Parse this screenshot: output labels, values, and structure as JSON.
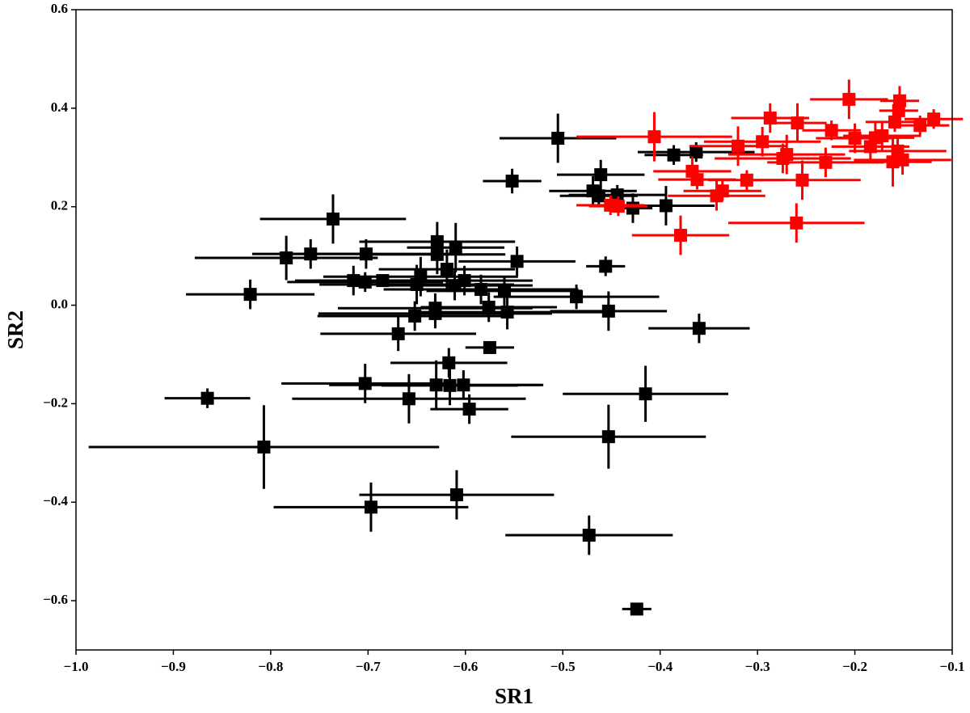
{
  "chart_data": {
    "type": "scatter",
    "xlabel": "SR1",
    "ylabel": "SR2",
    "xlim": [
      -1.0,
      -0.1
    ],
    "ylim": [
      -0.7,
      0.6
    ],
    "xticks": [
      {
        "value": -1.0,
        "label": "−1.0"
      },
      {
        "value": -0.9,
        "label": "−0.9"
      },
      {
        "value": -0.8,
        "label": "−0.8"
      },
      {
        "value": -0.7,
        "label": "−0.7"
      },
      {
        "value": -0.6,
        "label": "−0.6"
      },
      {
        "value": -0.5,
        "label": "−0.5"
      },
      {
        "value": -0.4,
        "label": "−0.4"
      },
      {
        "value": -0.3,
        "label": "−0.3"
      },
      {
        "value": -0.2,
        "label": "−0.2"
      },
      {
        "value": -0.1,
        "label": "−0.1"
      }
    ],
    "yticks": [
      {
        "value": -0.6,
        "label": "−0.6"
      },
      {
        "value": -0.4,
        "label": "−0.4"
      },
      {
        "value": -0.2,
        "label": "−0.2"
      },
      {
        "value": 0.0,
        "label": "0.0"
      },
      0.2,
      0.4,
      0.6
    ],
    "series": [
      {
        "color": "#000000",
        "x": [
          -0.865,
          -0.807,
          -0.697,
          -0.609,
          -0.473,
          -0.424,
          -0.453,
          -0.415,
          -0.36,
          -0.821,
          -0.784,
          -0.759,
          -0.736,
          -0.702,
          -0.715,
          -0.703,
          -0.685,
          -0.669,
          -0.703,
          -0.658,
          -0.652,
          -0.65,
          -0.646,
          -0.629,
          -0.629,
          -0.631,
          -0.631,
          -0.617,
          -0.63,
          -0.616,
          -0.602,
          -0.596,
          -0.61,
          -0.619,
          -0.611,
          -0.601,
          -0.584,
          -0.575,
          -0.576,
          -0.557,
          -0.56,
          -0.547,
          -0.552,
          -0.505,
          -0.486,
          -0.453,
          -0.456,
          -0.461,
          -0.469,
          -0.463,
          -0.444,
          -0.428,
          -0.394,
          -0.386,
          -0.363
        ],
        "values": [
          -0.189,
          -0.288,
          -0.41,
          -0.385,
          -0.467,
          -0.617,
          -0.267,
          -0.18,
          -0.047,
          0.022,
          0.096,
          0.104,
          0.175,
          0.104,
          0.05,
          0.047,
          0.05,
          -0.058,
          -0.159,
          -0.19,
          -0.022,
          0.042,
          0.058,
          0.129,
          0.103,
          -0.006,
          -0.017,
          -0.117,
          -0.162,
          -0.163,
          -0.162,
          -0.211,
          0.117,
          0.073,
          0.04,
          0.05,
          0.032,
          -0.086,
          -0.004,
          -0.014,
          0.029,
          0.089,
          0.252,
          0.339,
          0.017,
          -0.012,
          0.079,
          0.265,
          0.232,
          0.222,
          0.224,
          0.197,
          0.202,
          0.305,
          0.311
        ],
        "xerr": [
          0.044,
          0.18,
          0.1,
          0.1,
          0.086,
          0.015,
          0.1,
          0.085,
          0.052,
          0.066,
          0.094,
          0.06,
          0.075,
          0.09,
          0.06,
          0.08,
          0.07,
          0.08,
          0.086,
          0.12,
          0.1,
          0.1,
          0.1,
          0.08,
          0.07,
          0.1,
          0.12,
          0.06,
          0.11,
          0.07,
          0.08,
          0.04,
          0.05,
          0.07,
          0.08,
          0.07,
          0.1,
          0.025,
          0.07,
          0.1,
          0.08,
          0.06,
          0.03,
          0.06,
          0.085,
          0.06,
          0.02,
          0.045,
          0.045,
          0.04,
          0.05,
          0.02,
          0.05,
          0.03,
          0.06
        ],
        "yerr": [
          0.02,
          0.085,
          0.05,
          0.05,
          0.04,
          0.01,
          0.065,
          0.057,
          0.03,
          0.03,
          0.045,
          0.03,
          0.05,
          0.03,
          0.03,
          0.02,
          0.01,
          0.035,
          0.04,
          0.05,
          0.03,
          0.04,
          0.04,
          0.04,
          0.04,
          0.03,
          0.03,
          0.03,
          0.05,
          0.04,
          0.03,
          0.03,
          0.05,
          0.04,
          0.03,
          0.03,
          0.03,
          0.01,
          0.03,
          0.035,
          0.03,
          0.03,
          0.025,
          0.05,
          0.025,
          0.04,
          0.02,
          0.03,
          0.03,
          0.02,
          0.02,
          0.03,
          0.04,
          0.02,
          0.02
        ]
      },
      {
        "color": "#ff0000",
        "x": [
          -0.406,
          -0.451,
          -0.443,
          -0.379,
          -0.367,
          -0.362,
          -0.342,
          -0.336,
          -0.311,
          -0.32,
          -0.295,
          -0.287,
          -0.274,
          -0.27,
          -0.26,
          -0.254,
          -0.259,
          -0.23,
          -0.224,
          -0.206,
          -0.2,
          -0.184,
          -0.179,
          -0.172,
          -0.161,
          -0.159,
          -0.156,
          -0.154,
          -0.155,
          -0.151,
          -0.133,
          -0.119
        ],
        "values": [
          0.342,
          0.203,
          0.201,
          0.142,
          0.272,
          0.255,
          0.222,
          0.232,
          0.254,
          0.323,
          0.332,
          0.38,
          0.298,
          0.306,
          0.167,
          0.254,
          0.37,
          0.29,
          0.355,
          0.418,
          0.339,
          0.322,
          0.34,
          0.344,
          0.291,
          0.372,
          0.313,
          0.415,
          0.395,
          0.295,
          0.365,
          0.378
        ],
        "xerr": [
          0.08,
          0.035,
          0.03,
          0.05,
          0.04,
          0.04,
          0.05,
          0.04,
          0.04,
          0.05,
          0.06,
          0.04,
          0.07,
          0.06,
          0.07,
          0.06,
          0.03,
          0.06,
          0.03,
          0.04,
          0.04,
          0.04,
          0.04,
          0.04,
          0.04,
          0.03,
          0.05,
          0.02,
          0.02,
          0.05,
          0.03,
          0.03
        ],
        "yerr": [
          0.05,
          0.02,
          0.02,
          0.04,
          0.03,
          0.02,
          0.03,
          0.02,
          0.02,
          0.04,
          0.03,
          0.03,
          0.03,
          0.04,
          0.04,
          0.04,
          0.04,
          0.03,
          0.02,
          0.04,
          0.03,
          0.03,
          0.03,
          0.03,
          0.05,
          0.02,
          0.03,
          0.03,
          0.02,
          0.03,
          0.02,
          0.02
        ]
      }
    ]
  }
}
